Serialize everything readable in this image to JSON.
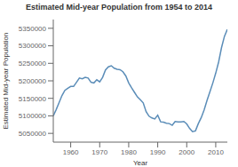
{
  "chart_data": {
    "type": "line",
    "title": "Estimated Mid-year Population from 1954 to 2014",
    "x_label": "Year",
    "y_label": "Estimated Mid-year Population",
    "x": [
      1954,
      1955,
      1956,
      1957,
      1958,
      1959,
      1960,
      1961,
      1962,
      1963,
      1964,
      1965,
      1966,
      1967,
      1968,
      1969,
      1970,
      1971,
      1972,
      1973,
      1974,
      1975,
      1976,
      1977,
      1978,
      1979,
      1980,
      1981,
      1982,
      1983,
      1984,
      1985,
      1986,
      1987,
      1988,
      1989,
      1990,
      1991,
      1992,
      1993,
      1994,
      1995,
      1996,
      1997,
      1998,
      1999,
      2000,
      2001,
      2002,
      2003,
      2004,
      2005,
      2006,
      2007,
      2008,
      2009,
      2010,
      2011,
      2012,
      2013,
      2014
    ],
    "values": [
      5100000,
      5118000,
      5138000,
      5158000,
      5173000,
      5179000,
      5184000,
      5184000,
      5196000,
      5208000,
      5206000,
      5210000,
      5208000,
      5196000,
      5194000,
      5203000,
      5197000,
      5210000,
      5231000,
      5240000,
      5243000,
      5236000,
      5233000,
      5232000,
      5226000,
      5214000,
      5194000,
      5180000,
      5167000,
      5154000,
      5146000,
      5137000,
      5112000,
      5099000,
      5094000,
      5091000,
      5102000,
      5083000,
      5082000,
      5079000,
      5078000,
      5073000,
      5084000,
      5083000,
      5083000,
      5084000,
      5077000,
      5064000,
      5055000,
      5057000,
      5078000,
      5095000,
      5117000,
      5144000,
      5169000,
      5194000,
      5222000,
      5254000,
      5295000,
      5327000,
      5347000
    ],
    "color": "#5b8db8",
    "xlim": [
      1954,
      2014
    ],
    "ylim": [
      5025000,
      5375000
    ],
    "xticks": [
      1960,
      1970,
      1980,
      1990,
      2000,
      2010
    ],
    "yticks": [
      5050000,
      5100000,
      5150000,
      5200000,
      5250000,
      5300000,
      5350000
    ],
    "grid": false
  }
}
